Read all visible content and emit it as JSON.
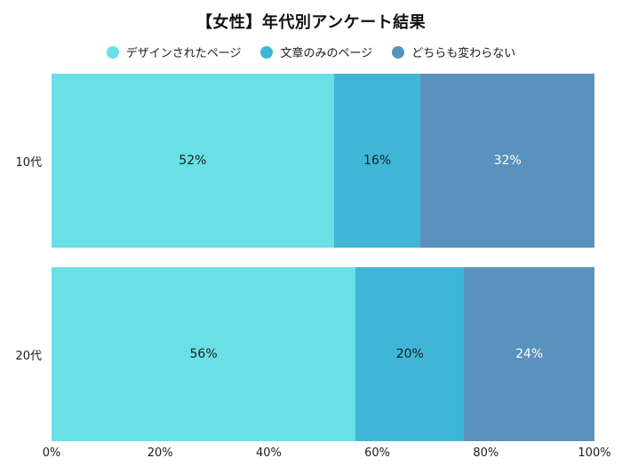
{
  "page": {
    "background": "#ffffff"
  },
  "chart_data": {
    "type": "bar",
    "stacked": true,
    "orientation": "horizontal",
    "title": "【女性】年代別アンケート結果",
    "categories": [
      "10代",
      "20代"
    ],
    "series": [
      {
        "name": "デザインされたページ",
        "color": "#69E0E6",
        "label_color": "#1c1c1c",
        "values": [
          52,
          56
        ]
      },
      {
        "name": "文章のみのページ",
        "color": "#3FB6D6",
        "label_color": "#1c1c1c",
        "values": [
          16,
          20
        ]
      },
      {
        "name": "どちらも変わらない",
        "color": "#5992BD",
        "label_color": "#ffffff",
        "values": [
          32,
          24
        ]
      }
    ],
    "value_suffix": "%",
    "x_ticks": [
      {
        "value": 0,
        "label": "0%"
      },
      {
        "value": 20,
        "label": "20%"
      },
      {
        "value": 40,
        "label": "40%"
      },
      {
        "value": 60,
        "label": "60%"
      },
      {
        "value": 80,
        "label": "80%"
      },
      {
        "value": 100,
        "label": "100%"
      }
    ],
    "xlim": [
      0,
      100
    ],
    "legend_position": "top",
    "grid": false,
    "axis_text_color": "#1c1c1c"
  }
}
